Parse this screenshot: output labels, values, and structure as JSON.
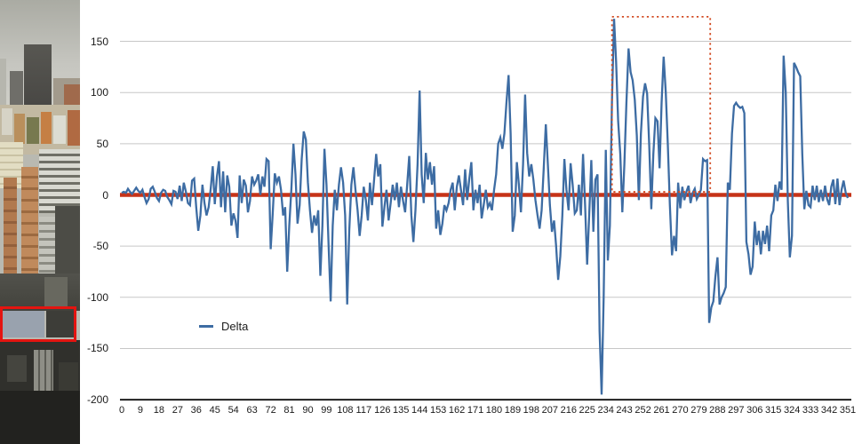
{
  "photo": {
    "description": "aerial city skyline photograph with red highlight rectangle on a rooftop",
    "annotation_color": "#e41410"
  },
  "chart_data": {
    "type": "line",
    "title": "",
    "xlabel": "",
    "ylabel": "",
    "xlim": [
      0,
      351
    ],
    "ylim": [
      -200,
      175
    ],
    "grid": true,
    "xticks": [
      0,
      9,
      18,
      27,
      36,
      45,
      54,
      63,
      72,
      81,
      90,
      99,
      108,
      117,
      126,
      135,
      144,
      153,
      162,
      171,
      180,
      189,
      198,
      207,
      216,
      225,
      234,
      243,
      252,
      261,
      270,
      279,
      288,
      297,
      306,
      315,
      324,
      333,
      342,
      351
    ],
    "yticks": [
      150,
      100,
      50,
      0,
      -50,
      -100,
      -150,
      -200
    ],
    "legend": {
      "label": "Delta",
      "position": "left-center"
    },
    "colors": {
      "series": "#3d6ca3",
      "zero_line": "#c63318",
      "annotation": "#d24a20",
      "grid": "#c7c7c7",
      "axis": "#1f1f1f"
    },
    "zero_line": {
      "value": 0
    },
    "annotation_box": {
      "x_start": 237,
      "x_end": 284.5,
      "y_top": 174,
      "y_bottom": 3,
      "style": "dotted"
    },
    "series": [
      {
        "name": "Delta",
        "values": [
          2,
          3,
          2,
          6,
          3,
          1,
          4,
          7,
          4,
          2,
          5,
          -2,
          -8,
          -4,
          6,
          8,
          3,
          -3,
          -6,
          2,
          5,
          4,
          -2,
          -5,
          -9,
          4,
          3,
          -4,
          9,
          -6,
          12,
          3,
          -8,
          -10,
          14,
          16,
          -12,
          -35,
          -20,
          10,
          -8,
          -20,
          -12,
          6,
          28,
          -9,
          18,
          33,
          -12,
          23,
          -17,
          19,
          8,
          -30,
          -18,
          -25,
          -42,
          19,
          -8,
          15,
          9,
          -17,
          -6,
          18,
          10,
          14,
          20,
          0,
          18,
          8,
          35,
          33,
          -53,
          -18,
          21,
          12,
          18,
          5,
          -20,
          -12,
          -75,
          -30,
          6,
          50,
          20,
          -28,
          -10,
          35,
          62,
          54,
          12,
          -15,
          -37,
          -20,
          -30,
          -15,
          -79,
          -30,
          45,
          10,
          -50,
          -104,
          -30,
          5,
          -15,
          10,
          27,
          12,
          -20,
          -107,
          -35,
          10,
          27,
          5,
          -15,
          -40,
          -20,
          8,
          -5,
          -25,
          12,
          -10,
          15,
          40,
          18,
          30,
          -31,
          -12,
          5,
          -25,
          -8,
          10,
          -5,
          12,
          -12,
          8,
          -6,
          -17,
          10,
          38,
          -20,
          -46,
          -15,
          30,
          102,
          20,
          -8,
          41,
          15,
          32,
          10,
          28,
          -33,
          -15,
          -39,
          -28,
          -10,
          -15,
          -8,
          5,
          12,
          -15,
          8,
          19,
          5,
          -10,
          25,
          -5,
          15,
          32,
          -15,
          5,
          -8,
          10,
          -23,
          -10,
          5,
          -12,
          -8,
          -15,
          5,
          20,
          50,
          56,
          45,
          60,
          90,
          117,
          60,
          -36,
          -20,
          32,
          10,
          -17,
          30,
          98,
          41,
          18,
          30,
          15,
          -5,
          -20,
          -33,
          -15,
          25,
          69,
          30,
          -10,
          -36,
          -25,
          -50,
          -83,
          -60,
          -20,
          35,
          5,
          -15,
          31,
          10,
          -18,
          -15,
          10,
          -20,
          40,
          -10,
          -68,
          -20,
          34,
          -36,
          15,
          20,
          -133,
          -195,
          -100,
          44,
          -64,
          -30,
          90,
          172,
          130,
          72,
          40,
          -17,
          30,
          90,
          143,
          120,
          112,
          93,
          58,
          -5,
          60,
          96,
          109,
          99,
          50,
          -14,
          40,
          75,
          72,
          26,
          90,
          135,
          100,
          49,
          -10,
          -59,
          -40,
          -55,
          12,
          -13,
          8,
          -5,
          3,
          9,
          -8,
          2,
          6,
          -4,
          0,
          5,
          35,
          33,
          34,
          -125,
          -110,
          -104,
          -80,
          -61,
          -107,
          -100,
          -96,
          -90,
          12,
          5,
          60,
          87,
          90,
          87,
          85,
          86,
          80,
          -46,
          -58,
          -78,
          -70,
          -26,
          -49,
          -35,
          -58,
          -35,
          -48,
          -30,
          -55,
          -20,
          -15,
          10,
          -6,
          13,
          5,
          136,
          100,
          -5,
          -61,
          -40,
          129,
          125,
          120,
          116,
          40,
          -14,
          4,
          -10,
          -12,
          9,
          -5,
          9,
          -7,
          5,
          -6,
          9,
          -4,
          -10,
          8,
          15,
          -9,
          16,
          -10,
          5,
          14,
          2,
          -3
        ]
      }
    ]
  }
}
